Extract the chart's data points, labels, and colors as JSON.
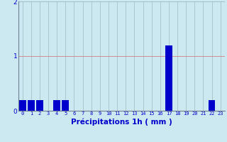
{
  "hours": [
    0,
    1,
    2,
    3,
    4,
    5,
    6,
    7,
    8,
    9,
    10,
    11,
    12,
    13,
    14,
    15,
    16,
    17,
    18,
    19,
    20,
    21,
    22,
    23
  ],
  "values": [
    0.2,
    0.2,
    0.2,
    0.0,
    0.2,
    0.2,
    0.0,
    0.0,
    0.0,
    0.0,
    0.0,
    0.0,
    0.0,
    0.0,
    0.0,
    0.0,
    0.0,
    1.2,
    0.0,
    0.0,
    0.0,
    0.0,
    0.2,
    0.0
  ],
  "bar_color": "#0000cc",
  "background_color": "#cce8f0",
  "grid_color_h_red": "#d08080",
  "grid_color_h_gray": "#a0b8c0",
  "grid_color_v": "#a0b8c0",
  "xlabel": "Précipitations 1h ( mm )",
  "xlabel_color": "#0000cc",
  "tick_color": "#0000cc",
  "ylim": [
    0,
    2
  ],
  "yticks": [
    0,
    1,
    2
  ],
  "label_fontsize": 7.5
}
